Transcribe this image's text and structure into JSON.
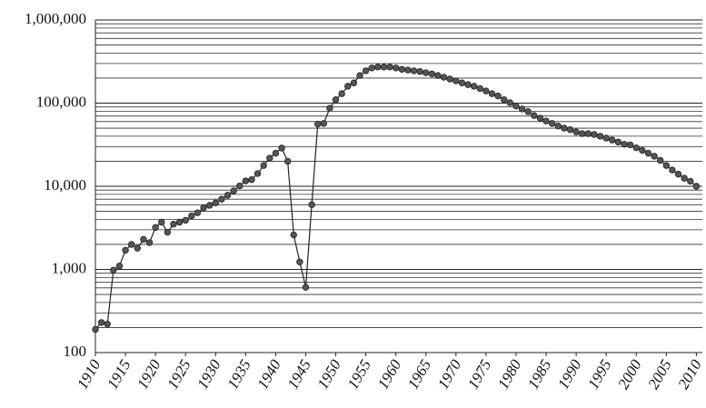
{
  "chart_data": {
    "type": "line",
    "x": [
      1910,
      1911,
      1912,
      1913,
      1914,
      1915,
      1916,
      1917,
      1918,
      1919,
      1920,
      1921,
      1922,
      1923,
      1924,
      1925,
      1926,
      1927,
      1928,
      1929,
      1930,
      1931,
      1932,
      1933,
      1934,
      1935,
      1936,
      1937,
      1938,
      1939,
      1940,
      1941,
      1942,
      1943,
      1944,
      1945,
      1946,
      1947,
      1948,
      1949,
      1950,
      1951,
      1952,
      1953,
      1954,
      1955,
      1956,
      1957,
      1958,
      1959,
      1960,
      1961,
      1962,
      1963,
      1964,
      1965,
      1966,
      1967,
      1968,
      1969,
      1970,
      1971,
      1972,
      1973,
      1974,
      1975,
      1976,
      1977,
      1978,
      1979,
      1980,
      1981,
      1982,
      1983,
      1984,
      1985,
      1986,
      1987,
      1988,
      1989,
      1990,
      1991,
      1992,
      1993,
      1994,
      1995,
      1996,
      1997,
      1998,
      1999,
      2000,
      2001,
      2002,
      2003,
      2004,
      2005,
      2006,
      2007,
      2008,
      2009,
      2010
    ],
    "values": [
      190,
      230,
      220,
      980,
      1100,
      1700,
      2000,
      1800,
      2300,
      2100,
      3200,
      3700,
      2800,
      3500,
      3700,
      3900,
      4400,
      4800,
      5500,
      5900,
      6300,
      7000,
      7800,
      8800,
      10100,
      11600,
      12000,
      14200,
      17800,
      21800,
      25000,
      28800,
      20000,
      2600,
      1230,
      610,
      6000,
      56000,
      57000,
      87000,
      110000,
      130000,
      160000,
      175000,
      215000,
      245000,
      265000,
      272000,
      272000,
      272000,
      265000,
      255000,
      250000,
      245000,
      240000,
      232000,
      225000,
      215000,
      205000,
      195000,
      185000,
      175000,
      167000,
      160000,
      150000,
      140000,
      130000,
      122000,
      110000,
      101000,
      92000,
      85000,
      79000,
      71000,
      66000,
      61000,
      57000,
      53000,
      50000,
      48000,
      45000,
      43000,
      43000,
      42000,
      40000,
      38000,
      36000,
      34000,
      32000,
      31500,
      29000,
      27000,
      25000,
      23000,
      20500,
      17800,
      15700,
      14000,
      12500,
      11500,
      10000
    ],
    "color": "#222222",
    "xlim": [
      1910,
      2011
    ],
    "xticks": [
      1910,
      1915,
      1920,
      1925,
      1930,
      1935,
      1940,
      1945,
      1950,
      1955,
      1960,
      1965,
      1970,
      1975,
      1980,
      1985,
      1990,
      1995,
      2000,
      2005,
      2010
    ],
    "ylim": [
      100,
      1000000
    ],
    "yticks": [
      {
        "value": 100,
        "label": "100"
      },
      {
        "value": 1000,
        "label": "1,000"
      },
      {
        "value": 10000,
        "label": "10,000"
      },
      {
        "value": 100000,
        "label": "100,000"
      },
      {
        "value": 1000000,
        "label": "1,000,000"
      }
    ],
    "log_y": true,
    "grid": true,
    "minor_grid": true
  }
}
